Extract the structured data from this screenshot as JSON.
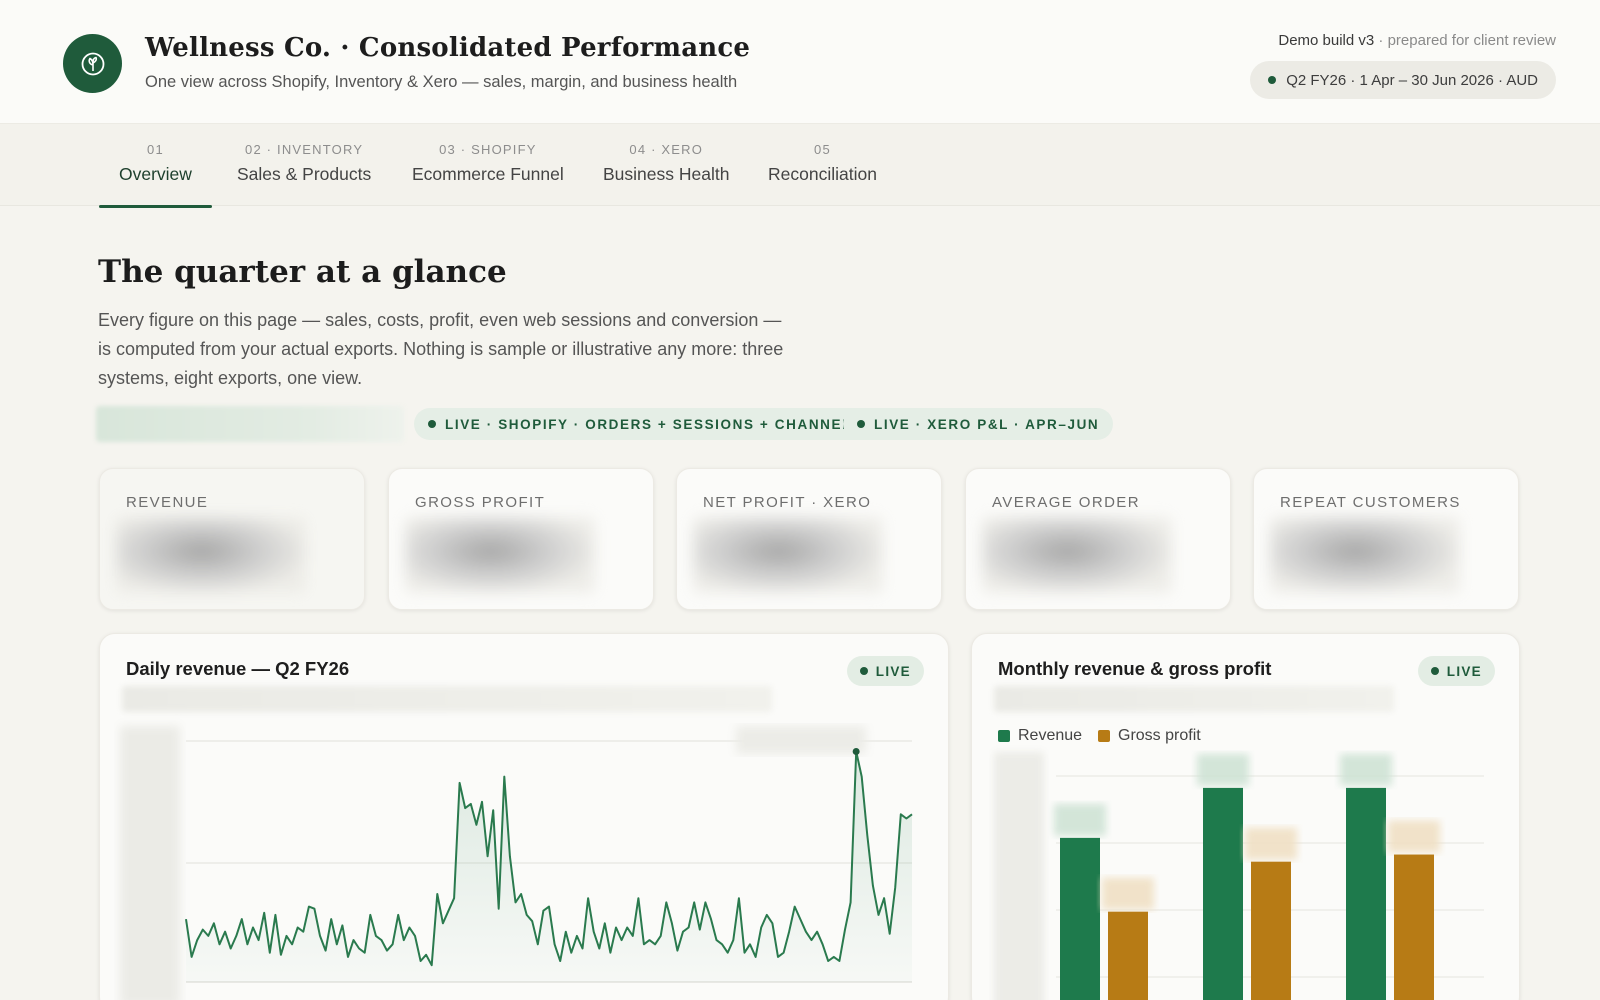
{
  "header": {
    "logo_icon": "leaf-icon",
    "title": "Wellness Co. · Consolidated Performance",
    "subtitle": "One view across Shopify, Inventory & Xero — sales, margin, and business health",
    "build_label": "Demo build v3",
    "build_note": " · prepared for client review",
    "period": "Q2 FY26 · 1 Apr – 30 Jun 2026 · AUD"
  },
  "tabs": [
    {
      "num": "01",
      "label": "Overview",
      "active": true
    },
    {
      "num": "02 · INVENTORY",
      "label": "Sales & Products"
    },
    {
      "num": "03 · SHOPIFY",
      "label": "Ecommerce Funnel"
    },
    {
      "num": "04 · XERO",
      "label": "Business Health"
    },
    {
      "num": "05",
      "label": "Reconciliation"
    }
  ],
  "main": {
    "heading": "The quarter at a glance",
    "intro": "Every figure on this page — sales, costs, profit, even web sessions and conversion — is computed from your actual exports. Nothing is sample or illustrative any more: three systems, eight exports, one view.",
    "source_pills": [
      "LIVE · SHOPIFY · ORDERS + SESSIONS + CHANNELS",
      "LIVE · XERO P&L · APR–JUN"
    ]
  },
  "kpis": [
    {
      "label": "REVENUE"
    },
    {
      "label": "GROSS PROFIT"
    },
    {
      "label": "NET PROFIT · XERO"
    },
    {
      "label": "AVERAGE ORDER"
    },
    {
      "label": "REPEAT CUSTOMERS"
    }
  ],
  "colors": {
    "brand": "#1f5b3b",
    "revenue": "#1e7a4c",
    "gross_profit": "#b77b15"
  },
  "charts": {
    "daily": {
      "title": "Daily revenue — Q2 FY26",
      "badge": "LIVE"
    },
    "monthly": {
      "title": "Monthly revenue & gross profit",
      "badge": "LIVE"
    }
  },
  "chart_data": [
    {
      "type": "line",
      "title": "Daily revenue — Q2 FY26",
      "series": [
        {
          "values": [
            30,
            12,
            20,
            25,
            22,
            28,
            18,
            24,
            16,
            22,
            30,
            18,
            26,
            20,
            33,
            14,
            32,
            13,
            22,
            18,
            26,
            24,
            36,
            35,
            22,
            15,
            30,
            18,
            27,
            12,
            20,
            16,
            14,
            32,
            22,
            20,
            15,
            18,
            32,
            20,
            26,
            22,
            10,
            13,
            8,
            42,
            28,
            34,
            40,
            95,
            83,
            85,
            75,
            86,
            60,
            82,
            35,
            98,
            60,
            38,
            42,
            32,
            29,
            18,
            34,
            36,
            18,
            10,
            24,
            14,
            22,
            16,
            40,
            24,
            16,
            28,
            14,
            26,
            20,
            26,
            22,
            40,
            18,
            20,
            18,
            22,
            38,
            28,
            15,
            24,
            26,
            38,
            25,
            38,
            30,
            20,
            18,
            14,
            20,
            40,
            14,
            18,
            12,
            26,
            32,
            28,
            12,
            14,
            24,
            36,
            30,
            24,
            20,
            24,
            18,
            10,
            12,
            10,
            25,
            38,
            110,
            98,
            70,
            46,
            32,
            40,
            23,
            45,
            80,
            78,
            80
          ]
        }
      ]
    },
    {
      "type": "bar",
      "title": "Monthly revenue & gross profit",
      "series": [
        {
          "name": "Revenue",
          "values": [
            0.74,
            0.95,
            0.95
          ]
        },
        {
          "name": "Gross profit",
          "values": [
            0.43,
            0.64,
            0.67
          ]
        }
      ]
    }
  ]
}
